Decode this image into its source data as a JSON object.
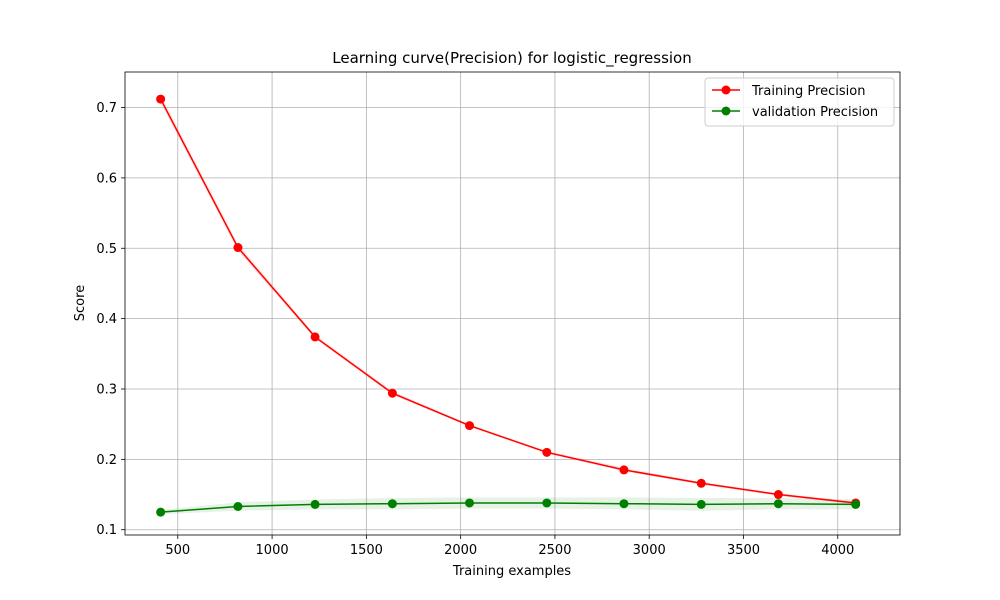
{
  "chart_data": {
    "type": "line",
    "title": "Learning curve(Precision) for logistic_regression",
    "xlabel": "Training examples",
    "ylabel": "Score",
    "xlim": [
      220,
      4330
    ],
    "ylim": [
      0.0925,
      0.7505
    ],
    "xticks": [
      500,
      1000,
      1500,
      2000,
      2500,
      3000,
      3500,
      4000
    ],
    "xtick_labels": [
      "500",
      "1000",
      "1500",
      "2000",
      "2500",
      "3000",
      "3500",
      "4000"
    ],
    "yticks": [
      0.1,
      0.2,
      0.3,
      0.4,
      0.5,
      0.6,
      0.7
    ],
    "ytick_labels": [
      "0.1",
      "0.2",
      "0.3",
      "0.4",
      "0.5",
      "0.6",
      "0.7"
    ],
    "grid": true,
    "legend_position": "top-right",
    "x": [
      409,
      819,
      1228,
      1638,
      2047,
      2457,
      2866,
      3276,
      3685,
      4095
    ],
    "series": [
      {
        "name": "Training Precision",
        "color": "#ff0000",
        "values": [
          0.712,
          0.501,
          0.374,
          0.294,
          0.248,
          0.21,
          0.185,
          0.166,
          0.15,
          0.138
        ],
        "band_lower": [
          0.706,
          0.496,
          0.371,
          0.292,
          0.246,
          0.208,
          0.183,
          0.164,
          0.148,
          0.136
        ],
        "band_upper": [
          0.718,
          0.506,
          0.377,
          0.297,
          0.25,
          0.212,
          0.188,
          0.168,
          0.152,
          0.14
        ]
      },
      {
        "name": "validation Precision",
        "color": "#008000",
        "values": [
          0.125,
          0.133,
          0.136,
          0.137,
          0.138,
          0.138,
          0.137,
          0.136,
          0.137,
          0.136
        ],
        "band_lower": [
          0.122,
          0.127,
          0.129,
          0.129,
          0.13,
          0.13,
          0.129,
          0.127,
          0.129,
          0.129
        ],
        "band_upper": [
          0.128,
          0.139,
          0.143,
          0.145,
          0.146,
          0.146,
          0.146,
          0.145,
          0.145,
          0.143
        ]
      }
    ]
  }
}
